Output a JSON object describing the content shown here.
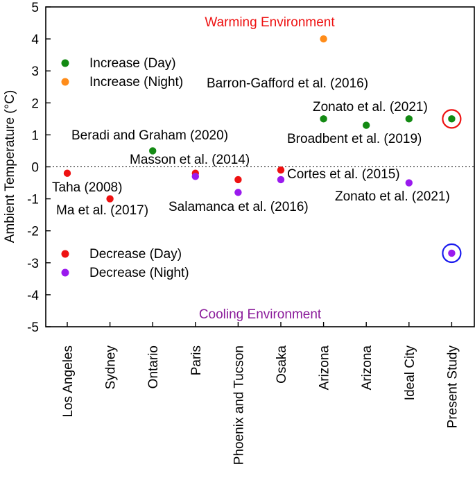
{
  "chart_data": {
    "type": "scatter",
    "ylabel": "Ambient Temperature (°C)",
    "xlabel": "",
    "ylim": [
      -5,
      5
    ],
    "yticks": [
      5,
      4,
      3,
      2,
      1,
      0,
      -1,
      -2,
      -3,
      -4,
      -5
    ],
    "categories": [
      "Los Angeles",
      "Sydney",
      "Ontario",
      "Paris",
      "Phoenix and Tucson",
      "Osaka",
      "Arizona",
      "Arizona",
      "Ideal City",
      "Present Study"
    ],
    "zero_line": "dotted",
    "series": [
      {
        "name": "Increase (Day)",
        "color": "#138a13",
        "points": [
          {
            "cat": 2,
            "y": 0.5
          },
          {
            "cat": 6,
            "y": 1.5
          },
          {
            "cat": 7,
            "y": 1.3
          },
          {
            "cat": 8,
            "y": 1.5
          },
          {
            "cat": 9,
            "y": 1.5
          }
        ]
      },
      {
        "name": "Increase (Night)",
        "color": "#ff8c1a",
        "points": [
          {
            "cat": 6,
            "y": 4.0
          }
        ]
      },
      {
        "name": "Decrease (Day)",
        "color": "#ee1111",
        "points": [
          {
            "cat": 0,
            "y": -0.2
          },
          {
            "cat": 1,
            "y": -1.0
          },
          {
            "cat": 3,
            "y": -0.2
          },
          {
            "cat": 4,
            "y": -0.4
          },
          {
            "cat": 5,
            "y": -0.1
          }
        ]
      },
      {
        "name": "Decrease (Night)",
        "color": "#9a1aee",
        "points": [
          {
            "cat": 3,
            "y": -0.3
          },
          {
            "cat": 4,
            "y": -0.8
          },
          {
            "cat": 5,
            "y": -0.4
          },
          {
            "cat": 8,
            "y": -0.5
          },
          {
            "cat": 9,
            "y": -2.7
          }
        ]
      }
    ],
    "highlight_circles": [
      {
        "cat": 9,
        "y": 1.5,
        "color": "#ee1111"
      },
      {
        "cat": 9,
        "y": -2.7,
        "color": "#1a1aee"
      }
    ],
    "annotations": [
      {
        "text": "Warming Environment",
        "color": "#ee1111"
      },
      {
        "text": "Cooling Environment",
        "color": "#8a1a9a"
      },
      {
        "text": "Barron-Gafford et al. (2016)"
      },
      {
        "text": "Zonato et al. (2021)"
      },
      {
        "text": "Broadbent et al. (2019)"
      },
      {
        "text": "Beradi and Graham (2020)"
      },
      {
        "text": "Masson et al. (2014)"
      },
      {
        "text": "Cortes et al. (2015)"
      },
      {
        "text": "Taha (2008)"
      },
      {
        "text": "Zonato et al. (2021)"
      },
      {
        "text": "Ma et al. (2017)"
      },
      {
        "text": "Salamanca et al. (2016)"
      }
    ],
    "legend_top": [
      "Increase (Day)",
      "Increase (Night)"
    ],
    "legend_bottom": [
      "Decrease (Day)",
      "Decrease (Night)"
    ]
  }
}
